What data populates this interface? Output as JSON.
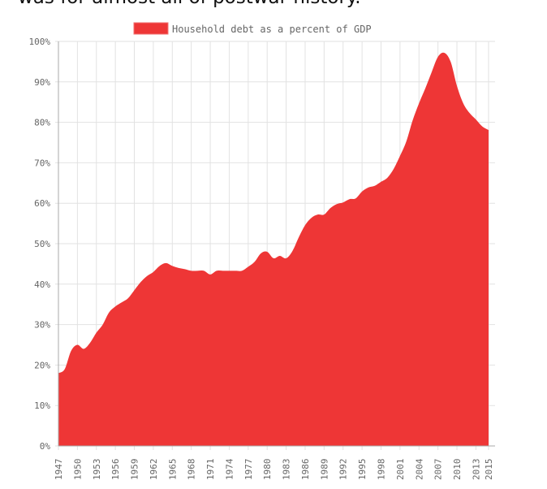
{
  "page": {
    "title_fragment": "was for almost all of postwar history."
  },
  "chart_data": {
    "type": "area",
    "title": "",
    "xlabel": "",
    "ylabel": "",
    "legend": {
      "label": "Household debt as a percent of GDP",
      "placement": "top-center"
    },
    "color": "#ee3636",
    "xlim": [
      1947,
      2015
    ],
    "ylim": [
      0,
      100
    ],
    "grid": true,
    "x_ticks": [
      1947,
      1950,
      1953,
      1956,
      1959,
      1962,
      1965,
      1968,
      1971,
      1974,
      1977,
      1980,
      1983,
      1986,
      1989,
      1992,
      1995,
      1998,
      2001,
      2004,
      2007,
      2010,
      2013,
      2015
    ],
    "y_ticks": [
      0,
      10,
      20,
      30,
      40,
      50,
      60,
      70,
      80,
      90,
      100
    ],
    "y_tick_suffix": "%",
    "x": [
      1947,
      1948,
      1949,
      1950,
      1951,
      1952,
      1953,
      1954,
      1955,
      1956,
      1957,
      1958,
      1959,
      1960,
      1961,
      1962,
      1963,
      1964,
      1965,
      1966,
      1967,
      1968,
      1969,
      1970,
      1971,
      1972,
      1973,
      1974,
      1975,
      1976,
      1977,
      1978,
      1979,
      1980,
      1981,
      1982,
      1983,
      1984,
      1985,
      1986,
      1987,
      1988,
      1989,
      1990,
      1991,
      1992,
      1993,
      1994,
      1995,
      1996,
      1997,
      1998,
      1999,
      2000,
      2001,
      2002,
      2003,
      2004,
      2005,
      2006,
      2007,
      2008,
      2009,
      2010,
      2011,
      2012,
      2013,
      2014,
      2015
    ],
    "values": [
      18,
      19,
      23.5,
      25,
      24,
      25.5,
      28,
      30,
      33,
      34.5,
      35.5,
      36.5,
      38.5,
      40.5,
      42,
      43,
      44.5,
      45.2,
      44.5,
      44,
      43.7,
      43.3,
      43.3,
      43.3,
      42.4,
      43.3,
      43.3,
      43.3,
      43.3,
      43.3,
      44.3,
      45.5,
      47.6,
      48,
      46.4,
      47,
      46.4,
      48.2,
      51.6,
      54.6,
      56.4,
      57.2,
      57.2,
      58.8,
      59.8,
      60.2,
      61,
      61.2,
      62.9,
      63.9,
      64.3,
      65.3,
      66.3,
      68.5,
      71.7,
      75.3,
      80.5,
      84.7,
      88.4,
      92.4,
      96.2,
      97.2,
      95,
      89,
      84.7,
      82.3,
      80.7,
      79,
      78.1
    ]
  }
}
